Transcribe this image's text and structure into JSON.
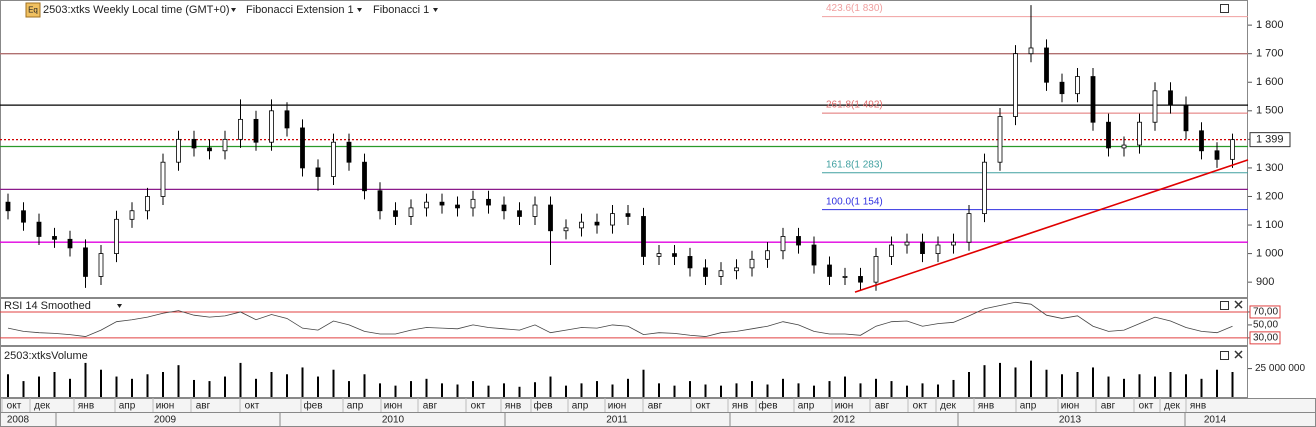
{
  "chart_data": {
    "type": "candlestick",
    "icon_label": "Eq",
    "title": "2503:xtks Weekly Local time (GMT+0)",
    "indicators": [
      "Fibonacci Extension 1",
      "Fibonacci 1"
    ],
    "ylim": [
      848,
      1888
    ],
    "yticks": [
      900,
      {
        "value": 1000,
        "label": "1 000"
      },
      {
        "value": 1100,
        "label": "1 100"
      },
      {
        "value": 1200,
        "label": "1 200"
      },
      {
        "value": 1300,
        "label": "1 300"
      },
      {
        "value": 1400,
        "label": "1 400"
      },
      {
        "value": 1500,
        "label": "1 500"
      },
      {
        "value": 1600,
        "label": "1 600"
      },
      {
        "value": 1700,
        "label": "1 700"
      },
      {
        "value": 1800,
        "label": "1 800"
      }
    ],
    "candles": {
      "open": [
        1180,
        1150,
        1110,
        1060,
        1050,
        1020,
        920,
        1000,
        1120,
        1150,
        1200,
        1320,
        1400,
        1370,
        1360,
        1400,
        1470,
        1390,
        1500,
        1440,
        1300,
        1270,
        1390,
        1320,
        1220,
        1150,
        1130,
        1160,
        1180,
        1170,
        1160,
        1190,
        1170,
        1150,
        1130,
        1170,
        1080,
        1090,
        1110,
        1100,
        1140,
        1130,
        990,
        1000,
        990,
        950,
        920,
        940,
        950,
        980,
        1010,
        1060,
        1030,
        960,
        920,
        920,
        900,
        990,
        1030,
        1040,
        1000,
        1030,
        1040,
        1140,
        1320,
        1480,
        1700,
        1720,
        1600,
        1560,
        1620,
        1460,
        1370,
        1380,
        1460,
        1570,
        1520,
        1430,
        1360,
        1330
      ],
      "high": [
        1210,
        1180,
        1140,
        1090,
        1080,
        1050,
        1030,
        1150,
        1180,
        1230,
        1350,
        1430,
        1430,
        1400,
        1430,
        1540,
        1500,
        1540,
        1530,
        1470,
        1330,
        1420,
        1420,
        1350,
        1250,
        1180,
        1190,
        1210,
        1210,
        1200,
        1220,
        1220,
        1200,
        1180,
        1200,
        1200,
        1120,
        1140,
        1140,
        1170,
        1170,
        1160,
        1030,
        1030,
        1020,
        980,
        970,
        980,
        1010,
        1040,
        1090,
        1090,
        1060,
        990,
        950,
        950,
        1020,
        1060,
        1070,
        1070,
        1060,
        1070,
        1170,
        1350,
        1510,
        1730,
        1870,
        1750,
        1630,
        1650,
        1650,
        1490,
        1410,
        1490,
        1600,
        1600,
        1550,
        1460,
        1390,
        1420
      ],
      "low": [
        1120,
        1080,
        1030,
        1020,
        990,
        880,
        890,
        970,
        1090,
        1120,
        1170,
        1290,
        1340,
        1330,
        1330,
        1370,
        1360,
        1360,
        1410,
        1270,
        1220,
        1240,
        1290,
        1190,
        1120,
        1100,
        1100,
        1130,
        1140,
        1130,
        1130,
        1140,
        1120,
        1100,
        1100,
        960,
        1050,
        1060,
        1070,
        1070,
        1100,
        960,
        960,
        960,
        920,
        890,
        890,
        910,
        920,
        950,
        980,
        1000,
        930,
        890,
        890,
        870,
        870,
        960,
        1000,
        970,
        970,
        1000,
        1010,
        1110,
        1290,
        1450,
        1670,
        1570,
        1530,
        1530,
        1430,
        1340,
        1340,
        1350,
        1430,
        1490,
        1400,
        1330,
        1300,
        1300
      ],
      "close": [
        1150,
        1110,
        1060,
        1050,
        1020,
        920,
        1000,
        1120,
        1150,
        1200,
        1320,
        1400,
        1370,
        1360,
        1400,
        1470,
        1390,
        1500,
        1440,
        1300,
        1270,
        1390,
        1320,
        1220,
        1150,
        1130,
        1160,
        1180,
        1170,
        1160,
        1190,
        1170,
        1150,
        1130,
        1170,
        1080,
        1090,
        1110,
        1100,
        1140,
        1130,
        990,
        1000,
        990,
        950,
        920,
        940,
        950,
        980,
        1010,
        1060,
        1030,
        960,
        920,
        920,
        900,
        990,
        1030,
        1040,
        1000,
        1030,
        1040,
        1140,
        1320,
        1480,
        1700,
        1720,
        1600,
        1560,
        1620,
        1460,
        1370,
        1380,
        1460,
        1570,
        1520,
        1430,
        1360,
        1330,
        1399
      ]
    },
    "levels": [
      {
        "value": 1700,
        "color": "#b07070",
        "style": "solid"
      },
      {
        "value": 1520,
        "color": "#000000",
        "style": "solid"
      },
      {
        "value": 1399,
        "color": "#d00000",
        "style": "dotted"
      },
      {
        "value": 1375,
        "color": "#2a9a2a",
        "style": "solid"
      },
      {
        "value": 1225,
        "color": "#8b1a8b",
        "style": "solid"
      },
      {
        "value": 1040,
        "color": "#e000e0",
        "style": "solid"
      }
    ],
    "fibonacci": [
      {
        "label": "423.6(1 830)",
        "value": 1830,
        "color": "#f0a0a0"
      },
      {
        "label": "261.8(1 492)",
        "value": 1492,
        "color": "#e07070"
      },
      {
        "label": "161.8(1 283)",
        "value": 1283,
        "color": "#40a0a0"
      },
      {
        "label": "100.0(1 154)",
        "value": 1154,
        "color": "#3030e0"
      }
    ],
    "trendline": {
      "color": "#e00000",
      "values": [
        865,
        1328
      ]
    },
    "last_price": {
      "label": "1 399",
      "value": 1399
    },
    "rsi": {
      "title": "RSI 14 Smoothed",
      "ylim": [
        19,
        90
      ],
      "yticks": [
        {
          "value": 70,
          "label": "70,00"
        },
        {
          "value": 50,
          "label": "50,00"
        },
        {
          "value": 30,
          "label": "30,00"
        }
      ],
      "levels": [
        70,
        30
      ],
      "values": [
        45,
        40,
        38,
        37,
        35,
        32,
        42,
        55,
        58,
        62,
        68,
        72,
        65,
        62,
        64,
        70,
        58,
        66,
        60,
        45,
        42,
        56,
        50,
        40,
        36,
        36,
        42,
        46,
        45,
        44,
        50,
        46,
        44,
        42,
        50,
        38,
        42,
        46,
        45,
        50,
        48,
        35,
        38,
        37,
        34,
        32,
        38,
        40,
        44,
        48,
        55,
        50,
        40,
        36,
        36,
        34,
        48,
        55,
        56,
        48,
        52,
        54,
        64,
        75,
        80,
        85,
        82,
        65,
        60,
        64,
        48,
        40,
        42,
        52,
        62,
        56,
        46,
        40,
        38,
        48
      ]
    },
    "volume": {
      "title": "2503:xtksVolume",
      "ylim": [
        0,
        44000000
      ],
      "yticks": [
        {
          "value": 25000000,
          "label": "25 000 000"
        }
      ],
      "values": [
        20000000,
        14000000,
        18000000,
        22000000,
        16000000,
        30000000,
        24000000,
        18000000,
        16000000,
        20000000,
        22000000,
        28000000,
        15000000,
        14000000,
        18000000,
        30000000,
        16000000,
        22000000,
        20000000,
        26000000,
        18000000,
        24000000,
        14000000,
        20000000,
        12000000,
        10000000,
        14000000,
        16000000,
        12000000,
        11000000,
        14000000,
        10000000,
        12000000,
        9000000,
        13000000,
        18000000,
        10000000,
        12000000,
        14000000,
        11000000,
        16000000,
        24000000,
        12000000,
        10000000,
        14000000,
        11000000,
        10000000,
        12000000,
        14000000,
        11000000,
        16000000,
        12000000,
        10000000,
        14000000,
        18000000,
        12000000,
        16000000,
        14000000,
        10000000,
        12000000,
        11000000,
        15000000,
        22000000,
        28000000,
        30000000,
        26000000,
        32000000,
        24000000,
        20000000,
        22000000,
        26000000,
        18000000,
        16000000,
        20000000,
        18000000,
        22000000,
        20000000,
        16000000,
        24000000,
        22000000
      ]
    },
    "months": [
      "окт",
      "дек",
      "янв",
      "апр",
      "июн",
      "авг",
      "окт",
      "фев",
      "апр",
      "июн",
      "авг",
      "окт",
      "янв",
      "фев",
      "апр",
      "июн",
      "авг",
      "окт",
      "янв",
      "фев",
      "апр",
      "июн",
      "авг",
      "окт",
      "дек",
      "янв",
      "апр",
      "июн",
      "авг",
      "окт",
      "дек",
      "янв"
    ],
    "years": [
      "2008",
      "2009",
      "2010",
      "2011",
      "2012",
      "2013",
      "2014"
    ]
  }
}
